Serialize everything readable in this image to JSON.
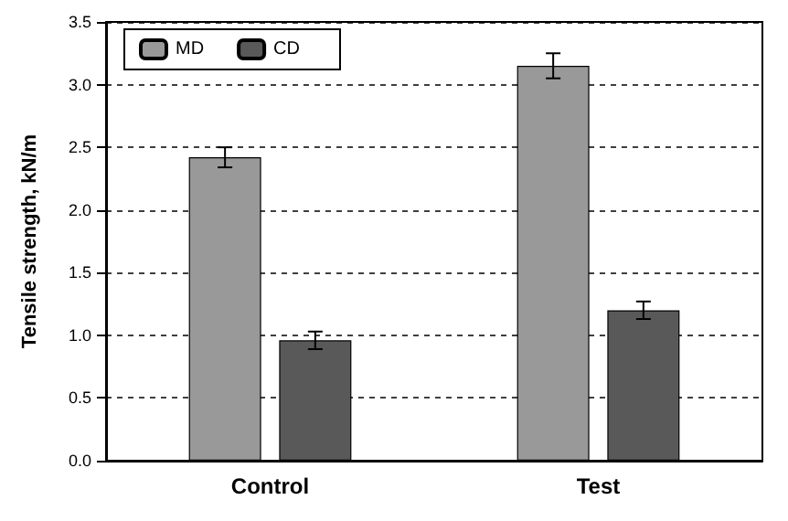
{
  "chart_data": {
    "type": "bar",
    "ylabel": "Tensile strength, kN/m",
    "categories": [
      "Control",
      "Test"
    ],
    "series": [
      {
        "name": "MD",
        "color": "#999999",
        "values": [
          2.42,
          3.15
        ],
        "errors": [
          0.08,
          0.1
        ]
      },
      {
        "name": "CD",
        "color": "#595959",
        "values": [
          0.96,
          1.2
        ],
        "errors": [
          0.07,
          0.07
        ]
      }
    ],
    "ylim": [
      0,
      3.5
    ],
    "yticks": [
      {
        "value": 0,
        "label": "0.0"
      },
      {
        "value": 0.5,
        "label": "0.5"
      },
      {
        "value": 1,
        "label": "1.0"
      },
      {
        "value": 1.5,
        "label": "1.5"
      },
      {
        "value": 2,
        "label": "2.0"
      },
      {
        "value": 2.5,
        "label": "2.5"
      },
      {
        "value": 3,
        "label": "3.0"
      },
      {
        "value": 3.5,
        "label": "3.5"
      }
    ],
    "grid": "y",
    "legend": "top left"
  }
}
